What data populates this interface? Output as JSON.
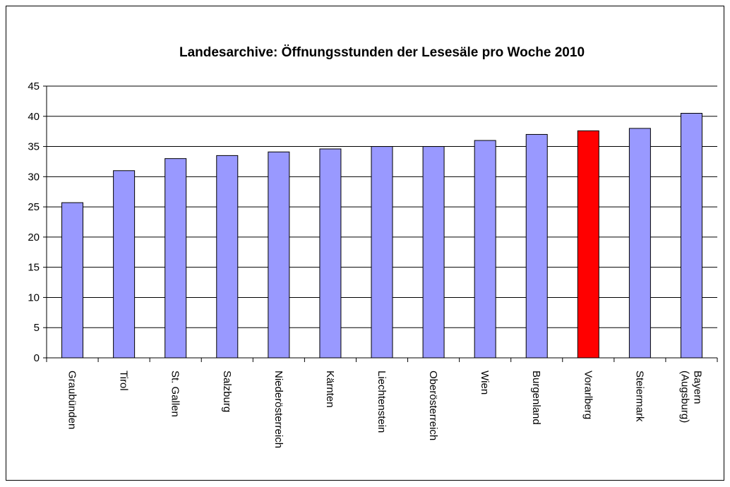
{
  "chart_data": {
    "type": "bar",
    "title": "Landesarchive: Öffnungsstunden der Lesesäle pro Woche 2010",
    "categories": [
      "Graubünden",
      "Tirol",
      "St. Gallen",
      "Salzburg",
      "Niederösterreich",
      "Kärnten",
      "Liechtenstein",
      "Oberösterreich",
      "Wien",
      "Burgenland",
      "Vorarlberg",
      "Steiermark",
      "Bayern (Augsburg)"
    ],
    "values": [
      25.7,
      31,
      33,
      33.5,
      34.1,
      34.6,
      35,
      35,
      36,
      37,
      37.6,
      38,
      40.5
    ],
    "colors": [
      "#9999ff",
      "#9999ff",
      "#9999ff",
      "#9999ff",
      "#9999ff",
      "#9999ff",
      "#9999ff",
      "#9999ff",
      "#9999ff",
      "#9999ff",
      "#ff0000",
      "#9999ff",
      "#9999ff"
    ],
    "ylim": [
      0,
      45
    ],
    "yticks": [
      0,
      5,
      10,
      15,
      20,
      25,
      30,
      35,
      40,
      45
    ],
    "grid": true
  }
}
